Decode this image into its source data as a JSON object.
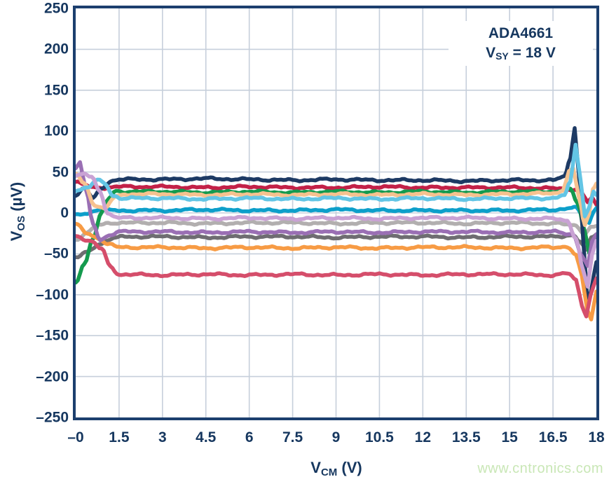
{
  "page": {
    "background": "#ffffff"
  },
  "watermark": {
    "text": "www.cntronics.com",
    "color": "#c9e7b6"
  },
  "chart_data": {
    "type": "line",
    "title": "",
    "annotation": {
      "line1": "ADA4661",
      "vsy_prefix": "V",
      "vsy_sub": "SY",
      "vsy_rest": " = 18 V"
    },
    "xlabel": {
      "main": "V",
      "sub": "CM",
      "unit": " (V)"
    },
    "ylabel": {
      "main": "V",
      "sub": "OS",
      "unit": " (µV)"
    },
    "xlim": [
      0,
      18
    ],
    "ylim": [
      -250,
      250
    ],
    "grid": {
      "on": true,
      "color": "#c6cfdb",
      "x_step": 1.5,
      "y_step": 50
    },
    "axis_color": "#1c3f6e",
    "tick_color": "#16375f",
    "legend": "none",
    "x_ticks": [
      {
        "v": 0,
        "label": "–0"
      },
      {
        "v": 1.5,
        "label": "1.5"
      },
      {
        "v": 3,
        "label": "3"
      },
      {
        "v": 4.5,
        "label": "4.5"
      },
      {
        "v": 6,
        "label": "6"
      },
      {
        "v": 7.5,
        "label": "7.5"
      },
      {
        "v": 9,
        "label": "9"
      },
      {
        "v": 10.5,
        "label": "10.5"
      },
      {
        "v": 12,
        "label": "12"
      },
      {
        "v": 13.5,
        "label": "13.5"
      },
      {
        "v": 15,
        "label": "15"
      },
      {
        "v": 16.5,
        "label": "16.5"
      },
      {
        "v": 18,
        "label": "18"
      }
    ],
    "y_ticks": [
      {
        "v": 250,
        "label": "250"
      },
      {
        "v": 200,
        "label": "200"
      },
      {
        "v": 150,
        "label": "150"
      },
      {
        "v": 100,
        "label": "100"
      },
      {
        "v": 50,
        "label": "50"
      },
      {
        "v": 0,
        "label": "0"
      },
      {
        "v": -50,
        "label": "–50"
      },
      {
        "v": -100,
        "label": "–100"
      },
      {
        "v": -150,
        "label": "–150"
      },
      {
        "v": -200,
        "label": "–200"
      },
      {
        "v": -250,
        "label": "–250"
      }
    ],
    "series": [
      {
        "name": "unit-crimson",
        "color": "#c32148",
        "points": [
          [
            0,
            38
          ],
          [
            0.3,
            34
          ],
          [
            0.6,
            31
          ],
          [
            1,
            31
          ],
          [
            1.5,
            32
          ],
          [
            3,
            32
          ],
          [
            4.5,
            31
          ],
          [
            6,
            32
          ],
          [
            7.5,
            31
          ],
          [
            9,
            31
          ],
          [
            10.5,
            32
          ],
          [
            12,
            31
          ],
          [
            13.5,
            31
          ],
          [
            15,
            31
          ],
          [
            16.5,
            30
          ],
          [
            17.2,
            29
          ],
          [
            17.5,
            24
          ],
          [
            17.7,
            13
          ],
          [
            17.85,
            18
          ],
          [
            18,
            10
          ]
        ]
      },
      {
        "name": "unit-teal",
        "color": "#0d9fca",
        "points": [
          [
            0,
            -3
          ],
          [
            0.4,
            0
          ],
          [
            0.8,
            4
          ],
          [
            1.2,
            3
          ],
          [
            3,
            3
          ],
          [
            4.5,
            4
          ],
          [
            6,
            3
          ],
          [
            7.5,
            3
          ],
          [
            9,
            4
          ],
          [
            10.5,
            3
          ],
          [
            12,
            3
          ],
          [
            13.5,
            3
          ],
          [
            15,
            3
          ],
          [
            16.5,
            4
          ],
          [
            17.3,
            6
          ],
          [
            17.55,
            -4
          ],
          [
            17.75,
            -12
          ],
          [
            17.9,
            2
          ],
          [
            18,
            6
          ]
        ]
      },
      {
        "name": "unit-silver",
        "color": "#b2afaf",
        "points": [
          [
            0,
            -33
          ],
          [
            0.4,
            -24
          ],
          [
            0.8,
            -15
          ],
          [
            1.2,
            -12
          ],
          [
            3,
            -12
          ],
          [
            4.5,
            -13
          ],
          [
            6,
            -12
          ],
          [
            7.5,
            -12
          ],
          [
            9,
            -13
          ],
          [
            10.5,
            -12
          ],
          [
            12,
            -12
          ],
          [
            13.5,
            -13
          ],
          [
            15,
            -12
          ],
          [
            16.5,
            -13
          ],
          [
            17.3,
            -15
          ],
          [
            17.6,
            -26
          ],
          [
            17.8,
            -18
          ],
          [
            18,
            -16
          ]
        ]
      },
      {
        "name": "unit-darkgray",
        "color": "#6e6d71",
        "points": [
          [
            0,
            -55
          ],
          [
            0.4,
            -48
          ],
          [
            0.8,
            -38
          ],
          [
            1.3,
            -31
          ],
          [
            1.7,
            -29
          ],
          [
            3,
            -29
          ],
          [
            4.5,
            -30
          ],
          [
            6,
            -29
          ],
          [
            7.5,
            -29
          ],
          [
            9,
            -30
          ],
          [
            10.5,
            -29
          ],
          [
            12,
            -29
          ],
          [
            13.5,
            -30
          ],
          [
            15,
            -29
          ],
          [
            16.5,
            -29
          ],
          [
            17.2,
            -27
          ],
          [
            17.45,
            -36
          ],
          [
            17.65,
            -46
          ],
          [
            17.82,
            -30
          ],
          [
            18,
            -26
          ]
        ]
      },
      {
        "name": "unit-green",
        "color": "#149a4e",
        "points": [
          [
            0,
            -85
          ],
          [
            0.3,
            -62
          ],
          [
            0.6,
            -30
          ],
          [
            0.9,
            0
          ],
          [
            1.15,
            18
          ],
          [
            1.4,
            27
          ],
          [
            1.7,
            26
          ],
          [
            3,
            26
          ],
          [
            4.5,
            25
          ],
          [
            6,
            26
          ],
          [
            7.5,
            25
          ],
          [
            9,
            26
          ],
          [
            10.5,
            25
          ],
          [
            12,
            26
          ],
          [
            13.5,
            25
          ],
          [
            15,
            26
          ],
          [
            16.5,
            26
          ],
          [
            17.1,
            29
          ],
          [
            17.35,
            12
          ],
          [
            17.6,
            -22
          ],
          [
            17.75,
            -48
          ],
          [
            17.9,
            -42
          ],
          [
            18,
            -30
          ]
        ]
      },
      {
        "name": "unit-navy",
        "color": "#1d3a64",
        "points": [
          [
            0,
            22
          ],
          [
            0.3,
            30
          ],
          [
            0.6,
            18
          ],
          [
            0.9,
            30
          ],
          [
            1.2,
            39
          ],
          [
            1.5,
            41
          ],
          [
            3,
            41
          ],
          [
            4.5,
            42
          ],
          [
            6,
            41
          ],
          [
            7.5,
            40
          ],
          [
            9,
            41
          ],
          [
            10.5,
            40
          ],
          [
            12,
            40
          ],
          [
            13.5,
            39
          ],
          [
            15,
            40
          ],
          [
            16.5,
            40
          ],
          [
            16.9,
            44
          ],
          [
            17.1,
            68
          ],
          [
            17.25,
            105
          ],
          [
            17.4,
            45
          ],
          [
            17.55,
            -35
          ],
          [
            17.7,
            -112
          ],
          [
            17.82,
            -95
          ],
          [
            18,
            -60
          ]
        ]
      },
      {
        "name": "unit-orange",
        "color": "#f79b44",
        "points": [
          [
            0,
            -14
          ],
          [
            0.4,
            -25
          ],
          [
            0.8,
            -31
          ],
          [
            1.1,
            -38
          ],
          [
            1.5,
            -42
          ],
          [
            3,
            -42
          ],
          [
            4.5,
            -43
          ],
          [
            6,
            -42
          ],
          [
            7.5,
            -43
          ],
          [
            9,
            -42
          ],
          [
            10.5,
            -43
          ],
          [
            12,
            -42
          ],
          [
            13.5,
            -42
          ],
          [
            15,
            -43
          ],
          [
            16.5,
            -42
          ],
          [
            17,
            -41
          ],
          [
            17.3,
            -52
          ],
          [
            17.5,
            -78
          ],
          [
            17.68,
            -118
          ],
          [
            17.82,
            -130
          ],
          [
            18,
            -96
          ]
        ]
      },
      {
        "name": "unit-rose",
        "color": "#d54e6b",
        "points": [
          [
            0,
            -28
          ],
          [
            0.5,
            -34
          ],
          [
            0.9,
            -44
          ],
          [
            1.2,
            -66
          ],
          [
            1.5,
            -75
          ],
          [
            3,
            -76
          ],
          [
            4.5,
            -75
          ],
          [
            6,
            -76
          ],
          [
            7.5,
            -75
          ],
          [
            9,
            -76
          ],
          [
            10.5,
            -75
          ],
          [
            12,
            -76
          ],
          [
            13.5,
            -75
          ],
          [
            15,
            -75
          ],
          [
            16.5,
            -76
          ],
          [
            17,
            -74
          ],
          [
            17.3,
            -82
          ],
          [
            17.5,
            -112
          ],
          [
            17.65,
            -126
          ],
          [
            17.8,
            -100
          ],
          [
            18,
            -80
          ]
        ]
      },
      {
        "name": "unit-purple",
        "color": "#9a6fb4",
        "points": [
          [
            0,
            55
          ],
          [
            0.15,
            62
          ],
          [
            0.35,
            28
          ],
          [
            0.6,
            -14
          ],
          [
            0.85,
            -33
          ],
          [
            1.15,
            -27
          ],
          [
            1.5,
            -23
          ],
          [
            3,
            -23
          ],
          [
            4.5,
            -24
          ],
          [
            6,
            -23
          ],
          [
            7.5,
            -24
          ],
          [
            9,
            -23
          ],
          [
            10.5,
            -24
          ],
          [
            12,
            -23
          ],
          [
            13.5,
            -23
          ],
          [
            15,
            -24
          ],
          [
            16.5,
            -23
          ],
          [
            17.2,
            -26
          ],
          [
            17.5,
            -52
          ],
          [
            17.7,
            -66
          ],
          [
            17.85,
            -36
          ],
          [
            18,
            -26
          ]
        ]
      },
      {
        "name": "unit-peach",
        "color": "#f6c28f",
        "points": [
          [
            0,
            48
          ],
          [
            0.3,
            36
          ],
          [
            0.65,
            10
          ],
          [
            1,
            5
          ],
          [
            1.35,
            19
          ],
          [
            1.7,
            23
          ],
          [
            3,
            23
          ],
          [
            4.5,
            22
          ],
          [
            6,
            23
          ],
          [
            7.5,
            22
          ],
          [
            9,
            23
          ],
          [
            10.5,
            22
          ],
          [
            12,
            23
          ],
          [
            13.5,
            22
          ],
          [
            15,
            23
          ],
          [
            16.5,
            24
          ],
          [
            16.85,
            28
          ],
          [
            17.05,
            50
          ],
          [
            17.2,
            54
          ],
          [
            17.4,
            18
          ],
          [
            17.6,
            -16
          ],
          [
            17.75,
            0
          ],
          [
            17.88,
            30
          ],
          [
            18,
            36
          ]
        ]
      },
      {
        "name": "unit-sky",
        "color": "#63c5e5",
        "points": [
          [
            0,
            28
          ],
          [
            0.4,
            31
          ],
          [
            0.75,
            40
          ],
          [
            1,
            36
          ],
          [
            1.3,
            21
          ],
          [
            1.6,
            18
          ],
          [
            3,
            18
          ],
          [
            4.5,
            17
          ],
          [
            6,
            18
          ],
          [
            7.5,
            17
          ],
          [
            9,
            18
          ],
          [
            10.5,
            17
          ],
          [
            12,
            18
          ],
          [
            13.5,
            17
          ],
          [
            15,
            18
          ],
          [
            16.5,
            18
          ],
          [
            16.9,
            21
          ],
          [
            17.1,
            38
          ],
          [
            17.28,
            84
          ],
          [
            17.45,
            42
          ],
          [
            17.6,
            -4
          ],
          [
            17.75,
            8
          ],
          [
            17.9,
            26
          ],
          [
            18,
            22
          ]
        ]
      },
      {
        "name": "unit-plum",
        "color": "#c9a2d4",
        "points": [
          [
            0,
            45
          ],
          [
            0.3,
            47
          ],
          [
            0.55,
            44
          ],
          [
            0.85,
            26
          ],
          [
            1.1,
            0
          ],
          [
            1.4,
            -6
          ],
          [
            3,
            -6
          ],
          [
            4.5,
            -7
          ],
          [
            6,
            -6
          ],
          [
            7.5,
            -7
          ],
          [
            9,
            -6
          ],
          [
            10.5,
            -7
          ],
          [
            12,
            -6
          ],
          [
            13.5,
            -6
          ],
          [
            15,
            -7
          ],
          [
            16.5,
            -7
          ],
          [
            17,
            -9
          ],
          [
            17.3,
            -32
          ],
          [
            17.55,
            -72
          ],
          [
            17.7,
            -90
          ],
          [
            17.85,
            -52
          ],
          [
            18,
            -34
          ]
        ]
      }
    ]
  }
}
